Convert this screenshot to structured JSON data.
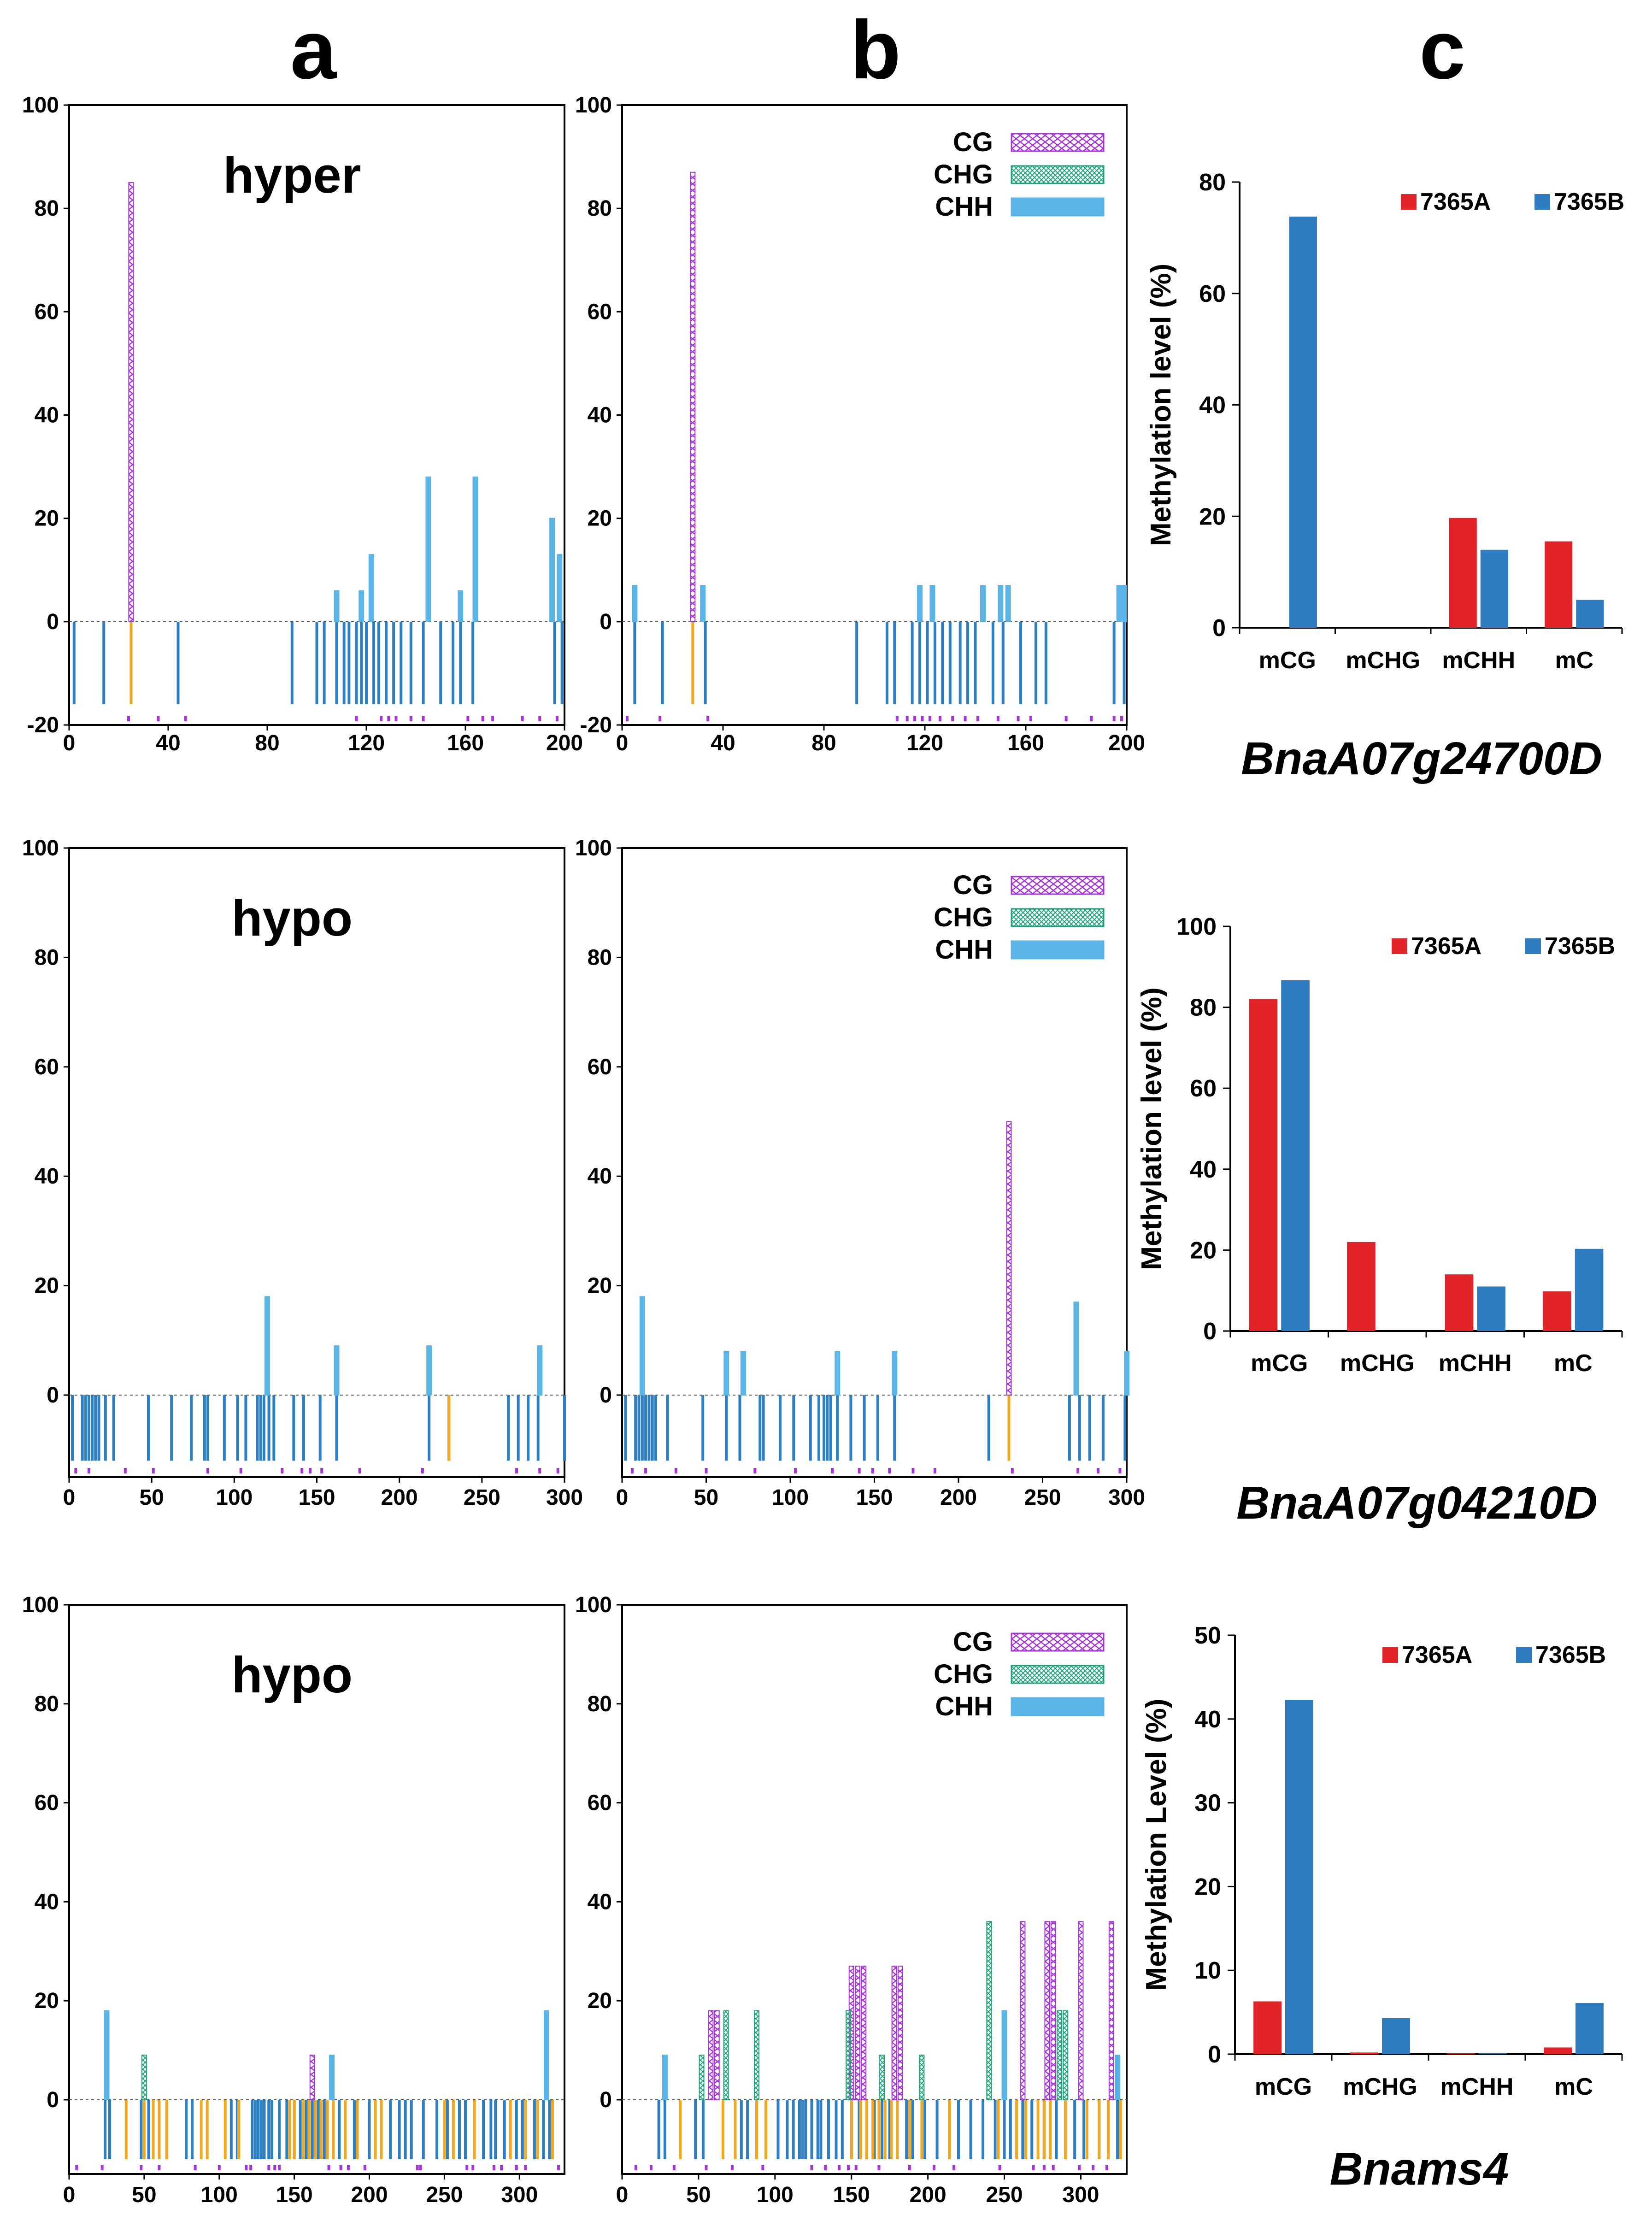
{
  "panel_letters": [
    "a",
    "b",
    "c"
  ],
  "context_legend": [
    "CG",
    "CHG",
    "CHH"
  ],
  "colors": {
    "CG": "#a636d6",
    "CHG": "#1fa37a",
    "CHH": "#5ab4e6",
    "CHH_negative": "#2b7fc2",
    "diff": "#f2a81d",
    "red_bar": "#e0242a",
    "blue_bar": "#2f7bbf"
  },
  "chart_data": [
    {
      "type": "bar",
      "panel": "a",
      "row": 0,
      "label": "hyper",
      "xlim": [
        0,
        200
      ],
      "ylim": [
        -20,
        100
      ],
      "xticks": [
        0,
        40,
        80,
        120,
        160,
        200
      ],
      "yticks": [
        -20,
        0,
        20,
        40,
        60,
        80,
        100
      ],
      "x_series": [
        {
          "name": "CG",
          "points": [
            {
              "x": 25,
              "y": 85
            }
          ]
        },
        {
          "name": "CHH",
          "points": [
            {
              "x": 108,
              "y": 6
            },
            {
              "x": 118,
              "y": 6
            },
            {
              "x": 122,
              "y": 13
            },
            {
              "x": 145,
              "y": 28
            },
            {
              "x": 158,
              "y": 6
            },
            {
              "x": 164,
              "y": 28
            },
            {
              "x": 195,
              "y": 20
            },
            {
              "x": 198,
              "y": 13
            }
          ]
        }
      ],
      "neg_sites": [
        2,
        14,
        44,
        90,
        100,
        103,
        108,
        111,
        113,
        116,
        118,
        120,
        123,
        125,
        128,
        131,
        134,
        138,
        143,
        150,
        155,
        158,
        163,
        196,
        199
      ],
      "diff_sites": [
        25
      ],
      "strip_sites": [
        24,
        36,
        47,
        116,
        126,
        129,
        132,
        138,
        143,
        161,
        167,
        171,
        183,
        190,
        197
      ]
    },
    {
      "type": "bar",
      "panel": "b",
      "row": 0,
      "label": "",
      "xlim": [
        0,
        200
      ],
      "ylim": [
        -20,
        100
      ],
      "xticks": [
        0,
        40,
        80,
        120,
        160,
        200
      ],
      "yticks": [
        -20,
        0,
        20,
        40,
        60,
        80,
        100
      ],
      "x_series": [
        {
          "name": "CG",
          "points": [
            {
              "x": 28,
              "y": 87
            }
          ]
        },
        {
          "name": "CHH",
          "points": [
            {
              "x": 5,
              "y": 7
            },
            {
              "x": 32,
              "y": 7
            },
            {
              "x": 118,
              "y": 7
            },
            {
              "x": 123,
              "y": 7
            },
            {
              "x": 143,
              "y": 7
            },
            {
              "x": 150,
              "y": 7
            },
            {
              "x": 153,
              "y": 7
            },
            {
              "x": 197,
              "y": 7
            },
            {
              "x": 199,
              "y": 7
            }
          ]
        }
      ],
      "neg_sites": [
        5,
        16,
        33,
        93,
        105,
        108,
        115,
        118,
        121,
        124,
        127,
        130,
        134,
        137,
        140,
        147,
        151,
        158,
        164,
        168,
        195,
        199
      ],
      "diff_sites": [
        28
      ],
      "strip_sites": [
        2,
        15,
        34,
        109,
        113,
        116,
        119,
        122,
        126,
        131,
        136,
        141,
        149,
        157,
        162,
        176,
        186,
        195,
        198
      ]
    },
    {
      "type": "bar",
      "panel": "a",
      "row": 1,
      "label": "hypo",
      "xlim": [
        0,
        300
      ],
      "ylim": [
        -15,
        100
      ],
      "xticks": [
        0,
        50,
        100,
        150,
        200,
        250,
        300
      ],
      "yticks": [
        0,
        20,
        40,
        60,
        80,
        100
      ],
      "x_series": [
        {
          "name": "CHH",
          "points": [
            {
              "x": 120,
              "y": 18
            },
            {
              "x": 162,
              "y": 9
            },
            {
              "x": 218,
              "y": 9
            },
            {
              "x": 285,
              "y": 9
            }
          ]
        }
      ],
      "neg_sites": [
        2,
        8,
        10,
        12,
        14,
        16,
        18,
        22,
        27,
        48,
        62,
        74,
        82,
        84,
        94,
        102,
        107,
        114,
        116,
        118,
        121,
        124,
        136,
        142,
        152,
        162,
        218,
        230,
        266,
        272,
        278,
        284,
        300
      ],
      "diff_sites": [
        230
      ],
      "strip_sites": [
        4,
        12,
        34,
        51,
        84,
        104,
        129,
        141,
        146,
        153,
        176,
        214,
        271,
        285,
        296
      ]
    },
    {
      "type": "bar",
      "panel": "b",
      "row": 1,
      "label": "",
      "xlim": [
        0,
        300
      ],
      "ylim": [
        -15,
        100
      ],
      "xticks": [
        0,
        50,
        100,
        150,
        200,
        250,
        300
      ],
      "yticks": [
        0,
        20,
        40,
        60,
        80,
        100
      ],
      "x_series": [
        {
          "name": "CG",
          "points": [
            {
              "x": 230,
              "y": 50
            }
          ]
        },
        {
          "name": "CHH",
          "points": [
            {
              "x": 12,
              "y": 18
            },
            {
              "x": 62,
              "y": 8
            },
            {
              "x": 72,
              "y": 8
            },
            {
              "x": 128,
              "y": 8
            },
            {
              "x": 162,
              "y": 8
            },
            {
              "x": 270,
              "y": 17
            },
            {
              "x": 300,
              "y": 8
            }
          ]
        }
      ],
      "neg_sites": [
        2,
        8,
        10,
        12,
        14,
        16,
        18,
        20,
        27,
        48,
        62,
        70,
        82,
        84,
        94,
        102,
        112,
        117,
        120,
        122,
        124,
        128,
        136,
        144,
        152,
        162,
        218,
        230,
        266,
        272,
        278,
        286,
        299
      ],
      "diff_sites": [
        230
      ],
      "strip_sites": [
        6,
        14,
        32,
        50,
        79,
        103,
        125,
        141,
        149,
        159,
        173,
        186,
        232,
        271,
        283,
        296
      ]
    },
    {
      "type": "bar",
      "panel": "a",
      "row": 2,
      "label": "hypo",
      "xlim": [
        0,
        330
      ],
      "ylim": [
        -15,
        100
      ],
      "xticks": [
        0,
        50,
        100,
        150,
        200,
        250,
        300
      ],
      "yticks": [
        0,
        20,
        40,
        60,
        80,
        100
      ],
      "x_series": [
        {
          "name": "CG",
          "points": [
            {
              "x": 162,
              "y": 9
            }
          ]
        },
        {
          "name": "CHG",
          "points": [
            {
              "x": 50,
              "y": 9
            }
          ]
        },
        {
          "name": "CHH",
          "points": [
            {
              "x": 25,
              "y": 18
            },
            {
              "x": 175,
              "y": 9
            },
            {
              "x": 318,
              "y": 18
            }
          ]
        }
      ],
      "neg_sites": [
        24,
        27,
        48,
        53,
        78,
        82,
        108,
        112,
        122,
        124,
        126,
        128,
        130,
        133,
        135,
        140,
        145,
        150,
        154,
        158,
        162,
        166,
        170,
        172,
        176,
        180,
        190,
        200,
        214,
        220,
        224,
        228,
        236,
        245,
        252,
        260,
        264,
        276,
        281,
        284,
        290,
        298,
        302,
        310,
        316,
        320
      ],
      "diff_sites": [
        38,
        50,
        56,
        60,
        65,
        88,
        92,
        104,
        113,
        147,
        150,
        156,
        160,
        164,
        168,
        172,
        176,
        184,
        192,
        204,
        208,
        250,
        256,
        270,
        294,
        304,
        312,
        322
      ],
      "strip_sites": [
        5,
        22,
        48,
        60,
        84,
        100,
        118,
        121,
        133,
        137,
        140,
        173,
        181,
        186,
        197,
        232,
        234,
        265,
        269,
        283,
        288,
        298,
        304,
        326
      ]
    },
    {
      "type": "bar",
      "panel": "b",
      "row": 2,
      "label": "",
      "xlim": [
        0,
        330
      ],
      "ylim": [
        -15,
        100
      ],
      "xticks": [
        0,
        50,
        100,
        150,
        200,
        250,
        300
      ],
      "yticks": [
        0,
        20,
        40,
        60,
        80,
        100
      ],
      "x_series": [
        {
          "name": "CG",
          "points": [
            {
              "x": 58,
              "y": 18
            },
            {
              "x": 62,
              "y": 18
            },
            {
              "x": 150,
              "y": 27
            },
            {
              "x": 154,
              "y": 27
            },
            {
              "x": 158,
              "y": 27
            },
            {
              "x": 178,
              "y": 27
            },
            {
              "x": 182,
              "y": 27
            },
            {
              "x": 262,
              "y": 36
            },
            {
              "x": 278,
              "y": 36
            },
            {
              "x": 282,
              "y": 36
            },
            {
              "x": 300,
              "y": 36
            },
            {
              "x": 320,
              "y": 36
            }
          ]
        },
        {
          "name": "CHG",
          "points": [
            {
              "x": 52,
              "y": 9
            },
            {
              "x": 68,
              "y": 18
            },
            {
              "x": 88,
              "y": 18
            },
            {
              "x": 148,
              "y": 18
            },
            {
              "x": 170,
              "y": 9
            },
            {
              "x": 196,
              "y": 9
            },
            {
              "x": 240,
              "y": 36
            },
            {
              "x": 286,
              "y": 18
            },
            {
              "x": 290,
              "y": 18
            }
          ]
        },
        {
          "name": "CHH",
          "points": [
            {
              "x": 28,
              "y": 9
            },
            {
              "x": 250,
              "y": 18
            },
            {
              "x": 324,
              "y": 9
            }
          ]
        }
      ],
      "neg_sites": [
        24,
        28,
        48,
        53,
        78,
        82,
        102,
        108,
        112,
        116,
        118,
        120,
        124,
        128,
        130,
        135,
        140,
        144,
        150,
        155,
        160,
        165,
        170,
        175,
        180,
        186,
        190,
        198,
        206,
        214,
        220,
        228,
        236,
        244,
        250,
        254,
        262,
        268,
        276,
        280,
        284,
        290,
        296,
        302,
        312,
        318,
        324
      ],
      "diff_sites": [
        38,
        66,
        74,
        88,
        94,
        150,
        156,
        160,
        164,
        168,
        172,
        176,
        180,
        188,
        196,
        214,
        246,
        258,
        264,
        272,
        276,
        280,
        290,
        304,
        312,
        318,
        326
      ],
      "strip_sites": [
        9,
        19,
        34,
        55,
        72,
        92,
        124,
        133,
        142,
        148,
        153,
        168,
        188,
        204,
        217,
        247,
        269,
        276,
        282,
        299,
        308,
        317
      ]
    },
    {
      "type": "bar",
      "panel": "c",
      "row": 0,
      "categories": [
        "mCG",
        "mCHG",
        "mCHH",
        "mC"
      ],
      "series": [
        {
          "name": "7365A",
          "values": [
            0,
            0,
            19.7,
            15.5
          ]
        },
        {
          "name": "7365B",
          "values": [
            73.8,
            0,
            14,
            5
          ]
        }
      ],
      "ylabel": "Methylation level (%)",
      "ylim": [
        0,
        80
      ],
      "yticks": [
        0,
        20,
        40,
        60,
        80
      ],
      "gene": "BnaA07g24700D"
    },
    {
      "type": "bar",
      "panel": "c",
      "row": 1,
      "categories": [
        "mCG",
        "mCHG",
        "mCHH",
        "mC"
      ],
      "series": [
        {
          "name": "7365A",
          "values": [
            82,
            22,
            14,
            9.8
          ]
        },
        {
          "name": "7365B",
          "values": [
            86.7,
            0,
            11,
            20.3
          ]
        }
      ],
      "ylabel": "Methylation level (%)",
      "ylim": [
        0,
        100
      ],
      "yticks": [
        0,
        20,
        40,
        60,
        80,
        100
      ],
      "gene": "BnaA07g04210D"
    },
    {
      "type": "bar",
      "panel": "c",
      "row": 2,
      "categories": [
        "mCG",
        "mCHG",
        "mCHH",
        "mC"
      ],
      "series": [
        {
          "name": "7365A",
          "values": [
            6.3,
            0.2,
            0.1,
            0.8
          ]
        },
        {
          "name": "7365B",
          "values": [
            42.3,
            4.3,
            0.1,
            6.1
          ]
        }
      ],
      "ylabel": "Methylation Level   (%)",
      "ylim": [
        0,
        50
      ],
      "yticks": [
        0,
        10,
        20,
        30,
        40,
        50
      ],
      "gene": "Bnams4"
    }
  ]
}
